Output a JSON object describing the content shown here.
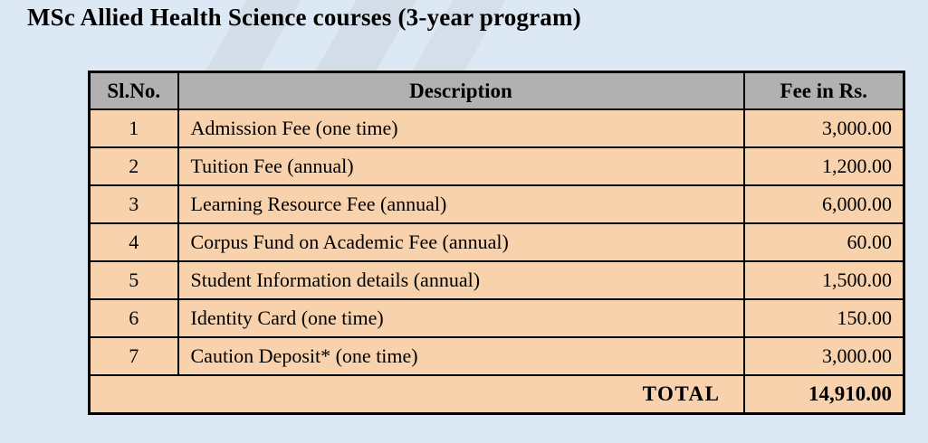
{
  "page": {
    "title": "MSc Allied Health Science courses (3-year program)"
  },
  "table": {
    "columns": [
      "Sl.No.",
      "Description",
      "Fee in Rs."
    ],
    "rows": [
      {
        "sl_no": "1",
        "description": "Admission Fee (one time)",
        "fee": "3,000.00"
      },
      {
        "sl_no": "2",
        "description": "Tuition Fee (annual)",
        "fee": "1,200.00"
      },
      {
        "sl_no": "3",
        "description": "Learning Resource Fee (annual)",
        "fee": "6,000.00"
      },
      {
        "sl_no": "4",
        "description": "Corpus Fund on Academic Fee (annual)",
        "fee": "60.00"
      },
      {
        "sl_no": "5",
        "description": "Student Information details (annual)",
        "fee": "1,500.00"
      },
      {
        "sl_no": "6",
        "description": "Identity Card (one time)",
        "fee": "150.00"
      },
      {
        "sl_no": "7",
        "description": "Caution Deposit* (one time)",
        "fee": "3,000.00"
      }
    ],
    "total_label": "TOTAL",
    "total_value": "14,910.00"
  },
  "colors": {
    "page_background": "#dce8f4",
    "header_background": "#b1b1b1",
    "row_background": "#f8d2ac",
    "border": "#000000",
    "text": "#000000",
    "watermark_stripe": "#ccd5de"
  }
}
